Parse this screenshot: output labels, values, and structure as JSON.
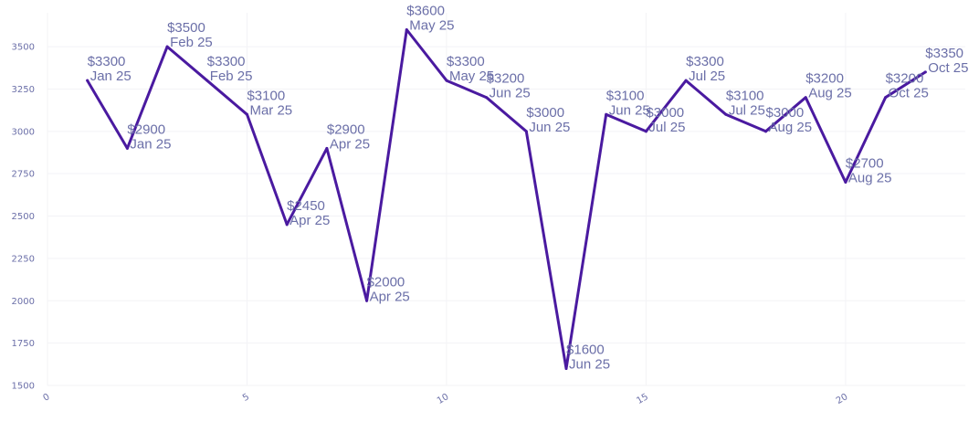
{
  "chart_data": {
    "type": "line",
    "title": "",
    "xlabel": "",
    "ylabel": "",
    "xlim": [
      0,
      23
    ],
    "ylim": [
      1500,
      3700
    ],
    "x_ticks": [
      0,
      5,
      10,
      15,
      20
    ],
    "y_ticks": [
      1500,
      1750,
      2000,
      2250,
      2500,
      2750,
      3000,
      3250,
      3500
    ],
    "grid": true,
    "colors": {
      "line": "#4a1aa0",
      "labels": "#6b6fa8",
      "ticks": "#6b6fa8",
      "grid": "#f3f3f6"
    },
    "series": [
      {
        "x": [
          1,
          2,
          3,
          4,
          5,
          6,
          7,
          8,
          9,
          10,
          11,
          12,
          13,
          14,
          15,
          16,
          17,
          18,
          19,
          20,
          21,
          22
        ],
        "values": [
          3300,
          2900,
          3500,
          3300,
          3100,
          2450,
          2900,
          2000,
          3600,
          3300,
          3200,
          3000,
          1600,
          3100,
          3000,
          3300,
          3100,
          3000,
          3200,
          2700,
          3200,
          3350
        ],
        "labels": [
          [
            "$3300",
            "Jan 25"
          ],
          [
            "$2900",
            "Jan 25"
          ],
          [
            "$3500",
            "Feb 25"
          ],
          [
            "$3300",
            "Feb 25"
          ],
          [
            "$3100",
            "Mar 25"
          ],
          [
            "$2450",
            "Apr 25"
          ],
          [
            "$2900",
            "Apr 25"
          ],
          [
            "$2000",
            "Apr 25"
          ],
          [
            "$3600",
            "May 25"
          ],
          [
            "$3300",
            "May 25"
          ],
          [
            "$3200",
            "Jun 25"
          ],
          [
            "$3000",
            "Jun 25"
          ],
          [
            "$1600",
            "Jun 25"
          ],
          [
            "$3100",
            "Jun 25"
          ],
          [
            "$3000",
            "Jul 25"
          ],
          [
            "$3300",
            "Jul 25"
          ],
          [
            "$3100",
            "Jul 25"
          ],
          [
            "$3000",
            "Aug 25"
          ],
          [
            "$3200",
            "Aug 25"
          ],
          [
            "$2700",
            "Aug 25"
          ],
          [
            "$3200",
            "Oct 25"
          ],
          [
            "$3350",
            "Oct 25"
          ]
        ]
      }
    ]
  }
}
